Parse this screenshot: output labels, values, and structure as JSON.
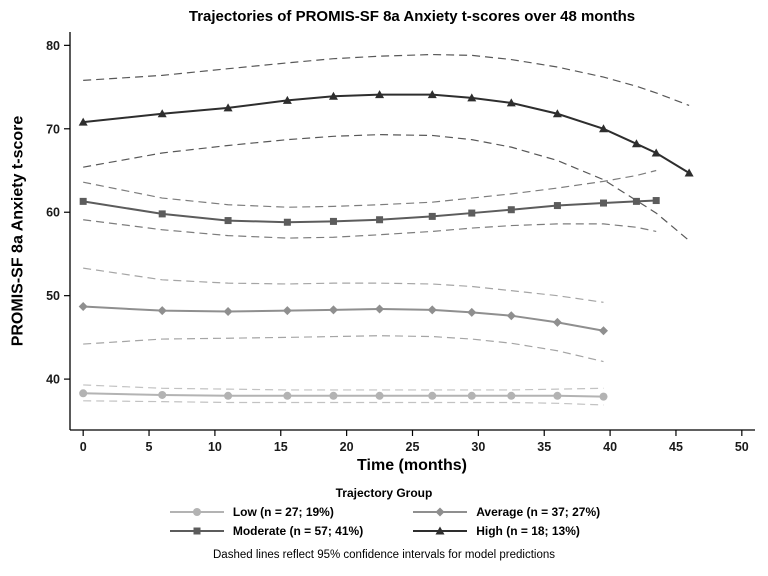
{
  "chart_data": {
    "type": "line",
    "title": "Trajectories of PROMIS-SF 8a Anxiety t-scores over 48 months",
    "xlabel": "Time (months)",
    "ylabel": "PROMIS-SF 8a Anxiety t-score",
    "xlim": [
      -1,
      51
    ],
    "ylim": [
      33.9,
      81.6
    ],
    "xticks": [
      0,
      5,
      10,
      15,
      20,
      25,
      30,
      35,
      40,
      45,
      50
    ],
    "yticks": [
      40,
      50,
      60,
      70,
      80
    ],
    "grid": false,
    "legend_title": "Trajectory Group",
    "legend_position": "bottom",
    "footnote": "Dashed lines reflect 95% confidence intervals for model predictions",
    "ci_note": "dashed lines are 95% confidence intervals",
    "series": [
      {
        "key": "low",
        "name": "Low (n = 27; 19%)",
        "marker": "circle",
        "color": "#b3b3b3",
        "x": [
          0,
          6,
          11,
          15.5,
          19,
          22.5,
          26.5,
          29.5,
          32.5,
          36,
          39.5
        ],
        "y": [
          38.3,
          38.1,
          38.0,
          38.0,
          38.0,
          38.0,
          38.0,
          38.0,
          38.0,
          38.0,
          37.9
        ],
        "ci_upper": [
          39.3,
          38.9,
          38.8,
          38.7,
          38.7,
          38.7,
          38.7,
          38.7,
          38.7,
          38.8,
          38.9
        ],
        "ci_lower": [
          37.4,
          37.3,
          37.2,
          37.2,
          37.2,
          37.2,
          37.2,
          37.2,
          37.2,
          37.1,
          36.9
        ]
      },
      {
        "key": "average",
        "name": "Average (n = 37; 27%)",
        "marker": "diamond",
        "color": "#8f8f8f",
        "x": [
          0,
          6,
          11,
          15.5,
          19,
          22.5,
          26.5,
          29.5,
          32.5,
          36,
          39.5
        ],
        "y": [
          48.7,
          48.2,
          48.1,
          48.2,
          48.3,
          48.4,
          48.3,
          48.0,
          47.6,
          46.8,
          45.8
        ],
        "ci_upper": [
          53.3,
          51.9,
          51.5,
          51.4,
          51.5,
          51.5,
          51.4,
          51.1,
          50.6,
          50.0,
          49.2
        ],
        "ci_lower": [
          44.2,
          44.8,
          44.9,
          45.0,
          45.1,
          45.2,
          45.1,
          44.8,
          44.3,
          43.4,
          42.1
        ]
      },
      {
        "key": "moderate",
        "name": "Moderate (n = 57; 41%)",
        "marker": "square",
        "color": "#5c5c5c",
        "x": [
          0,
          6,
          11,
          15.5,
          19,
          22.5,
          26.5,
          29.5,
          32.5,
          36,
          39.5,
          42,
          43.5
        ],
        "y": [
          61.3,
          59.8,
          59.0,
          58.8,
          58.9,
          59.1,
          59.5,
          59.9,
          60.3,
          60.8,
          61.1,
          61.3,
          61.4
        ],
        "ci_upper": [
          63.6,
          61.7,
          60.9,
          60.6,
          60.7,
          60.9,
          61.2,
          61.7,
          62.2,
          62.9,
          63.7,
          64.4,
          65.0
        ],
        "ci_lower": [
          59.1,
          57.9,
          57.2,
          56.9,
          57.0,
          57.3,
          57.7,
          58.1,
          58.4,
          58.6,
          58.6,
          58.2,
          57.7
        ]
      },
      {
        "key": "high",
        "name": "High (n = 18; 13%)",
        "marker": "triangle",
        "color": "#2e2e2e",
        "x": [
          0,
          6,
          11,
          15.5,
          19,
          22.5,
          26.5,
          29.5,
          32.5,
          36,
          39.5,
          42,
          43.5,
          46
        ],
        "y": [
          70.8,
          71.8,
          72.5,
          73.4,
          73.9,
          74.1,
          74.1,
          73.7,
          73.1,
          71.8,
          70.0,
          68.2,
          67.1,
          64.7
        ],
        "ci_upper": [
          75.8,
          76.4,
          77.2,
          77.9,
          78.4,
          78.7,
          78.9,
          78.8,
          78.3,
          77.4,
          76.2,
          75.1,
          74.3,
          72.8
        ],
        "ci_lower": [
          65.4,
          67.1,
          68.0,
          68.7,
          69.1,
          69.3,
          69.2,
          68.7,
          67.8,
          66.2,
          63.9,
          61.4,
          59.9,
          56.6
        ]
      }
    ]
  }
}
